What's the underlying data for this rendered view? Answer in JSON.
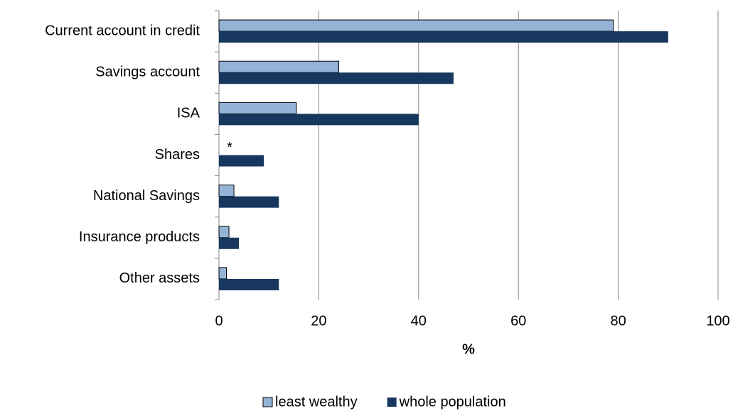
{
  "chart_data": {
    "type": "hbar",
    "categories": [
      "Current account in credit",
      "Savings account",
      "ISA",
      "Shares",
      "National Savings",
      "Insurance products",
      "Other assets"
    ],
    "series": [
      {
        "name": "least wealthy",
        "color": "#95b3d7",
        "values": [
          79,
          24,
          15.5,
          null,
          3,
          2,
          1.5
        ]
      },
      {
        "name": "whole population",
        "color": "#17375e",
        "values": [
          90,
          47,
          40,
          9,
          12,
          4,
          12
        ]
      }
    ],
    "annotation": "*",
    "x_label": "%",
    "xlim": [
      0,
      100
    ],
    "xticks": [
      0,
      20,
      40,
      60,
      80,
      100
    ],
    "grid": true,
    "legend": "bottom"
  }
}
